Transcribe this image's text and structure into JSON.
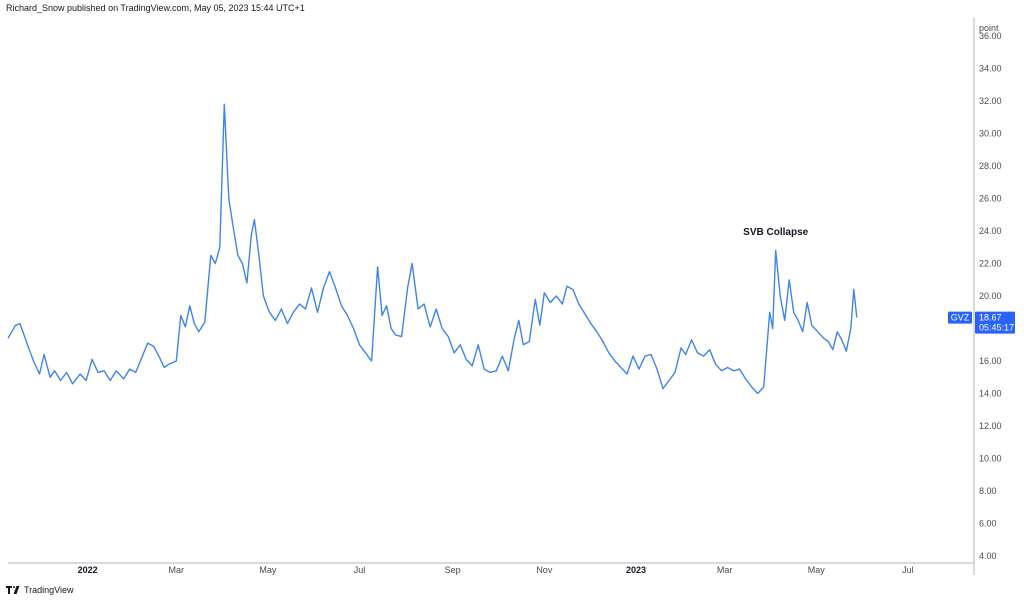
{
  "publisher": "Richard_Snow published on TradingView.com, May 05, 2023 15:44 UTC+1",
  "footer_brand": "TradingView",
  "line_color": "#3f85e8",
  "chart_data": {
    "type": "line",
    "unit_label": "point",
    "ylim": [
      4,
      37
    ],
    "yticks": [
      "4.00",
      "6.00",
      "8.00",
      "10.00",
      "12.00",
      "14.00",
      "16.00",
      "18.00",
      "20.00",
      "22.00",
      "24.00",
      "26.00",
      "28.00",
      "30.00",
      "32.00",
      "34.00",
      "36.00"
    ],
    "x_ticks": [
      {
        "label": "2022",
        "date": "2022-01-01",
        "major": true
      },
      {
        "label": "Mar",
        "date": "2022-03-01",
        "major": false
      },
      {
        "label": "May",
        "date": "2022-05-01",
        "major": false
      },
      {
        "label": "Jul",
        "date": "2022-07-01",
        "major": false
      },
      {
        "label": "Sep",
        "date": "2022-09-01",
        "major": false
      },
      {
        "label": "Nov",
        "date": "2022-11-01",
        "major": false
      },
      {
        "label": "2023",
        "date": "2023-01-01",
        "major": true
      },
      {
        "label": "Mar",
        "date": "2023-03-01",
        "major": false
      },
      {
        "label": "May",
        "date": "2023-05-01",
        "major": false
      },
      {
        "label": "Jul",
        "date": "2023-07-01",
        "major": false
      }
    ],
    "xlim": [
      "2021-11-09",
      "2023-08-14"
    ],
    "grid": false,
    "series": [
      {
        "name": "GVZ",
        "points": [
          [
            "2021-11-09",
            17.4
          ],
          [
            "2021-11-14",
            18.2
          ],
          [
            "2021-11-17",
            18.3
          ],
          [
            "2021-11-22",
            17.0
          ],
          [
            "2021-11-26",
            16.0
          ],
          [
            "2021-11-30",
            15.2
          ],
          [
            "2021-12-03",
            16.4
          ],
          [
            "2021-12-07",
            15.0
          ],
          [
            "2021-12-10",
            15.4
          ],
          [
            "2021-12-14",
            14.8
          ],
          [
            "2021-12-18",
            15.3
          ],
          [
            "2021-12-22",
            14.6
          ],
          [
            "2021-12-27",
            15.2
          ],
          [
            "2021-12-31",
            14.8
          ],
          [
            "2022-01-04",
            16.1
          ],
          [
            "2022-01-08",
            15.3
          ],
          [
            "2022-01-12",
            15.4
          ],
          [
            "2022-01-16",
            14.8
          ],
          [
            "2022-01-20",
            15.4
          ],
          [
            "2022-01-25",
            14.9
          ],
          [
            "2022-01-29",
            15.5
          ],
          [
            "2022-02-02",
            15.3
          ],
          [
            "2022-02-06",
            16.2
          ],
          [
            "2022-02-10",
            17.1
          ],
          [
            "2022-02-14",
            16.9
          ],
          [
            "2022-02-18",
            16.2
          ],
          [
            "2022-02-21",
            15.6
          ],
          [
            "2022-02-24",
            15.8
          ],
          [
            "2022-03-01",
            16.0
          ],
          [
            "2022-03-04",
            18.8
          ],
          [
            "2022-03-07",
            18.1
          ],
          [
            "2022-03-10",
            19.4
          ],
          [
            "2022-03-13",
            18.3
          ],
          [
            "2022-03-16",
            17.8
          ],
          [
            "2022-03-20",
            18.4
          ],
          [
            "2022-03-24",
            22.5
          ],
          [
            "2022-03-27",
            22.0
          ],
          [
            "2022-03-30",
            23.0
          ],
          [
            "2022-04-02",
            31.8
          ],
          [
            "2022-04-05",
            26.0
          ],
          [
            "2022-04-08",
            24.2
          ],
          [
            "2022-04-11",
            22.5
          ],
          [
            "2022-04-14",
            22.0
          ],
          [
            "2022-04-17",
            20.8
          ],
          [
            "2022-04-20",
            23.8
          ],
          [
            "2022-04-22",
            24.7
          ],
          [
            "2022-04-25",
            22.5
          ],
          [
            "2022-04-28",
            20.0
          ],
          [
            "2022-05-02",
            19.0
          ],
          [
            "2022-05-06",
            18.5
          ],
          [
            "2022-05-10",
            19.2
          ],
          [
            "2022-05-14",
            18.3
          ],
          [
            "2022-05-18",
            19.0
          ],
          [
            "2022-05-22",
            19.5
          ],
          [
            "2022-05-26",
            19.2
          ],
          [
            "2022-05-30",
            20.5
          ],
          [
            "2022-06-03",
            19.0
          ],
          [
            "2022-06-07",
            20.5
          ],
          [
            "2022-06-11",
            21.5
          ],
          [
            "2022-06-15",
            20.5
          ],
          [
            "2022-06-19",
            19.4
          ],
          [
            "2022-06-23",
            18.8
          ],
          [
            "2022-06-27",
            18.0
          ],
          [
            "2022-07-01",
            17.0
          ],
          [
            "2022-07-05",
            16.5
          ],
          [
            "2022-07-09",
            16.0
          ],
          [
            "2022-07-13",
            21.8
          ],
          [
            "2022-07-16",
            18.8
          ],
          [
            "2022-07-19",
            19.4
          ],
          [
            "2022-07-22",
            18.0
          ],
          [
            "2022-07-25",
            17.6
          ],
          [
            "2022-07-29",
            17.5
          ],
          [
            "2022-08-02",
            20.5
          ],
          [
            "2022-08-05",
            22.0
          ],
          [
            "2022-08-09",
            19.2
          ],
          [
            "2022-08-13",
            19.5
          ],
          [
            "2022-08-17",
            18.1
          ],
          [
            "2022-08-21",
            19.2
          ],
          [
            "2022-08-25",
            18.0
          ],
          [
            "2022-08-29",
            17.5
          ],
          [
            "2022-09-02",
            16.5
          ],
          [
            "2022-09-06",
            17.0
          ],
          [
            "2022-09-10",
            16.1
          ],
          [
            "2022-09-14",
            15.7
          ],
          [
            "2022-09-18",
            17.0
          ],
          [
            "2022-09-22",
            15.5
          ],
          [
            "2022-09-26",
            15.3
          ],
          [
            "2022-09-30",
            15.4
          ],
          [
            "2022-10-04",
            16.3
          ],
          [
            "2022-10-08",
            15.4
          ],
          [
            "2022-10-12",
            17.4
          ],
          [
            "2022-10-15",
            18.5
          ],
          [
            "2022-10-18",
            17.0
          ],
          [
            "2022-10-22",
            17.2
          ],
          [
            "2022-10-26",
            19.8
          ],
          [
            "2022-10-29",
            18.2
          ],
          [
            "2022-11-01",
            20.2
          ],
          [
            "2022-11-05",
            19.6
          ],
          [
            "2022-11-09",
            20.0
          ],
          [
            "2022-11-13",
            19.5
          ],
          [
            "2022-11-16",
            20.6
          ],
          [
            "2022-11-20",
            20.4
          ],
          [
            "2022-11-24",
            19.5
          ],
          [
            "2022-11-28",
            18.9
          ],
          [
            "2022-12-02",
            18.3
          ],
          [
            "2022-12-06",
            17.8
          ],
          [
            "2022-12-10",
            17.2
          ],
          [
            "2022-12-14",
            16.5
          ],
          [
            "2022-12-18",
            16.0
          ],
          [
            "2022-12-22",
            15.6
          ],
          [
            "2022-12-26",
            15.2
          ],
          [
            "2022-12-30",
            16.3
          ],
          [
            "2023-01-03",
            15.5
          ],
          [
            "2023-01-07",
            16.3
          ],
          [
            "2023-01-11",
            16.4
          ],
          [
            "2023-01-15",
            15.5
          ],
          [
            "2023-01-19",
            14.3
          ],
          [
            "2023-01-23",
            14.8
          ],
          [
            "2023-01-27",
            15.3
          ],
          [
            "2023-01-31",
            16.8
          ],
          [
            "2023-02-03",
            16.4
          ],
          [
            "2023-02-07",
            17.3
          ],
          [
            "2023-02-11",
            16.5
          ],
          [
            "2023-02-15",
            16.3
          ],
          [
            "2023-02-19",
            16.7
          ],
          [
            "2023-02-23",
            15.8
          ],
          [
            "2023-02-27",
            15.4
          ],
          [
            "2023-03-03",
            15.6
          ],
          [
            "2023-03-07",
            15.4
          ],
          [
            "2023-03-11",
            15.5
          ],
          [
            "2023-03-15",
            14.9
          ],
          [
            "2023-03-19",
            14.4
          ],
          [
            "2023-03-23",
            14.0
          ],
          [
            "2023-03-27",
            14.4
          ],
          [
            "2023-03-31",
            19.0
          ],
          [
            "2023-04-02",
            18.0
          ],
          [
            "2023-04-04",
            22.8
          ],
          [
            "2023-04-07",
            20.0
          ],
          [
            "2023-04-10",
            18.5
          ],
          [
            "2023-04-13",
            21.0
          ],
          [
            "2023-04-16",
            19.0
          ],
          [
            "2023-04-19",
            18.5
          ],
          [
            "2023-04-22",
            17.8
          ],
          [
            "2023-04-25",
            19.6
          ],
          [
            "2023-04-28",
            18.2
          ],
          [
            "2023-05-02",
            17.8
          ],
          [
            "2023-05-06",
            17.4
          ],
          [
            "2023-05-09",
            17.2
          ],
          [
            "2023-05-12",
            16.7
          ],
          [
            "2023-05-15",
            17.8
          ],
          [
            "2023-05-18",
            17.3
          ],
          [
            "2023-05-21",
            16.6
          ],
          [
            "2023-05-24",
            18.0
          ],
          [
            "2023-05-26",
            20.4
          ],
          [
            "2023-05-28",
            18.67
          ]
        ]
      }
    ],
    "last_value": {
      "value": "18.67",
      "label": "GVZ",
      "countdown": "05:45:17",
      "color": "#2962ff"
    },
    "annotations": [
      {
        "text": "SVB Collapse",
        "date": "2023-04-04",
        "value": 24.0
      }
    ]
  }
}
